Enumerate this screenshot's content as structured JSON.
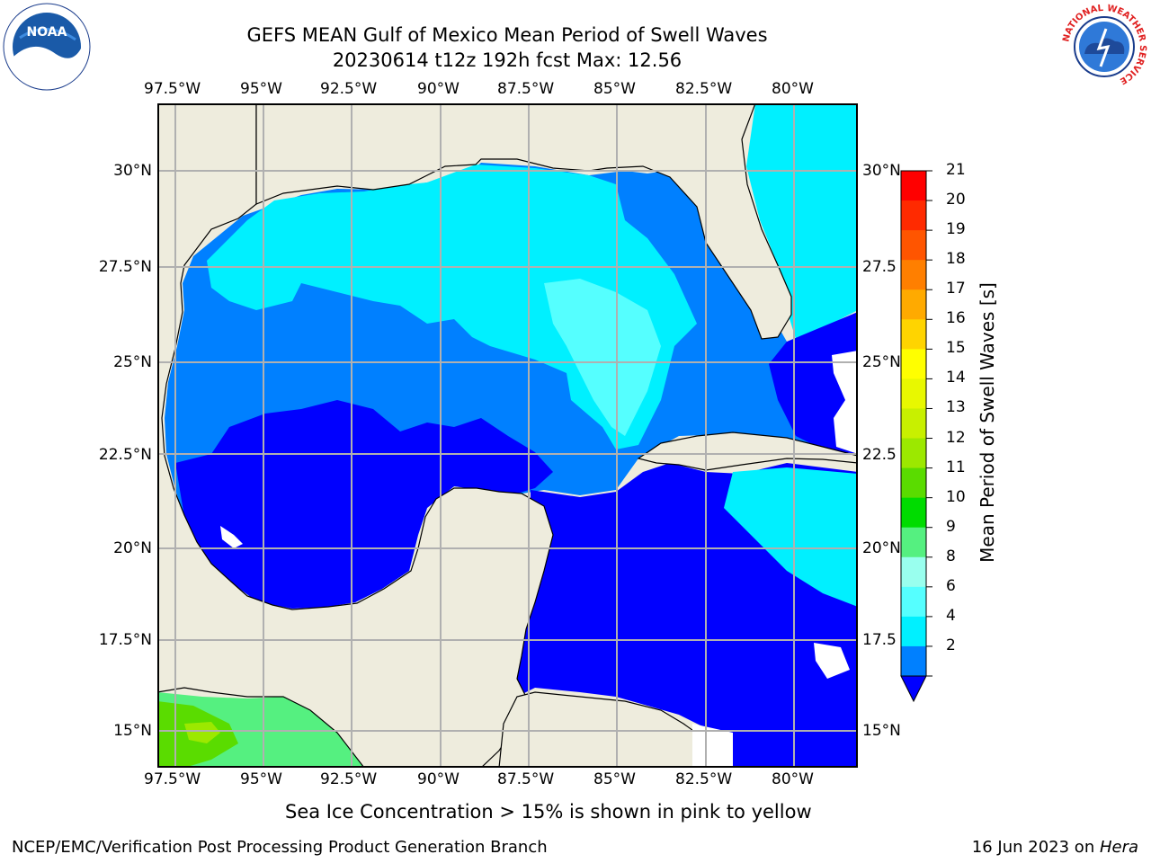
{
  "title": {
    "line1": "GEFS MEAN Gulf of Mexico Mean Period of Swell Waves",
    "line2": "20230614 t12z 192h fcst   Max: 12.56"
  },
  "map": {
    "lon_labels": [
      "97.5°W",
      "95°W",
      "92.5°W",
      "90°W",
      "87.5°W",
      "85°W",
      "82.5°W",
      "80°W"
    ],
    "lat_labels_left": [
      "30°N",
      "27.5°N",
      "25°N",
      "22.5°N",
      "20°N",
      "17.5°N",
      "15°N"
    ],
    "lat_labels_right": [
      "30°N",
      "27.5",
      "25°N",
      "22.5",
      "20°N",
      "17.5",
      "15°N"
    ],
    "land_color": "#eeecdd",
    "grid_color": "#b0b0b0"
  },
  "colorbar": {
    "label": "Mean Period of Swell Waves [s]",
    "ticks": [
      "21",
      "20",
      "19",
      "18",
      "17",
      "16",
      "15",
      "14",
      "13",
      "12",
      "11",
      "10",
      "9",
      "8",
      "6",
      "4",
      "2"
    ],
    "colors": [
      "#ff0000",
      "#ff2a00",
      "#ff5500",
      "#ff7f00",
      "#ffaa00",
      "#ffd400",
      "#ffff00",
      "#e8f800",
      "#c8f000",
      "#9ce800",
      "#5adc00",
      "#00dc00",
      "#55f080",
      "#99ffee",
      "#55ffff",
      "#00f0ff",
      "#0080ff"
    ],
    "extend_color": "#0000ff"
  },
  "caption": "Sea Ice Concentration > 15% is shown in pink to yellow",
  "footer": {
    "left": "NCEP/EMC/Verification Post Processing Product Generation Branch",
    "date": "16 Jun 2023 on ",
    "machine": "Hera"
  },
  "logos": {
    "noaa": "NOAA",
    "nws_ring": "NATIONAL WEATHER SERVICE"
  }
}
